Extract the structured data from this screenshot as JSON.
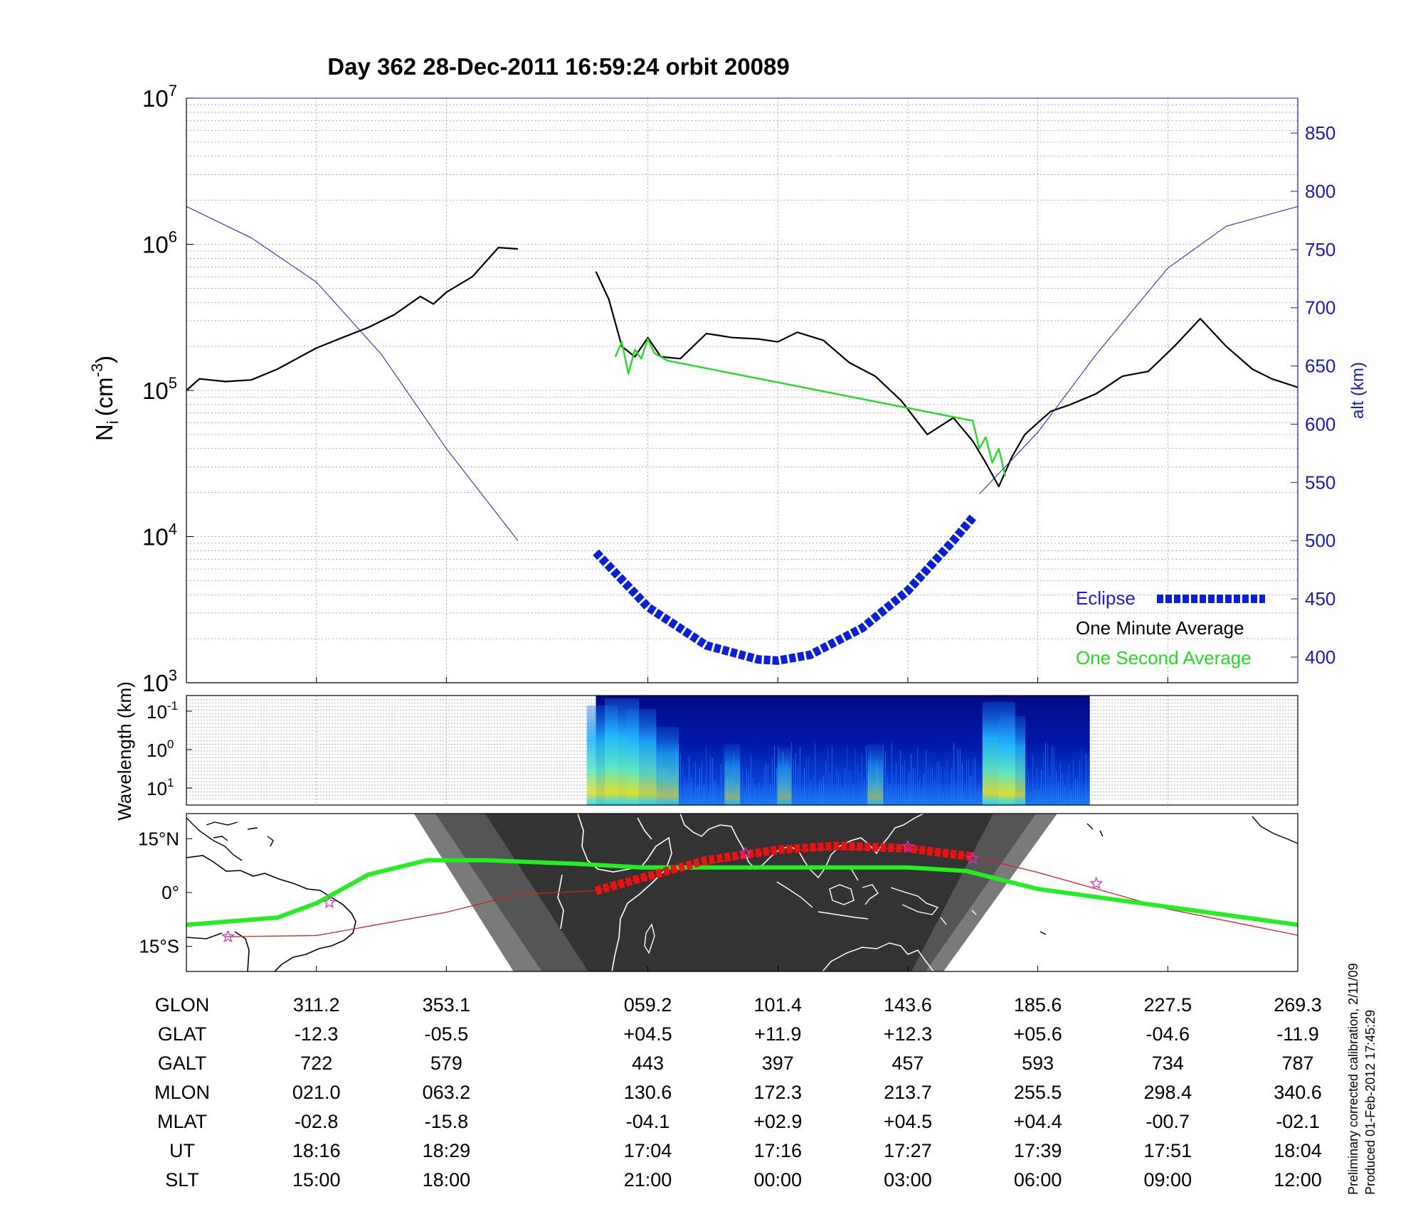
{
  "title": "Day 362  28-Dec-2011 16:59:24   orbit 20089",
  "chart_data": [
    {
      "type": "line",
      "ylabel_left": "N",
      "ylabel_left_sub": "i",
      "ylabel_left_unit": "(cm",
      "ylabel_left_sup": "-3",
      "ylabel_left_close": ")",
      "ylabel_right": "alt (km)",
      "yscale_left": "log",
      "ylim_left": [
        1000,
        10000000
      ],
      "left_ticks": [
        {
          "base": "10",
          "exp": "3",
          "value": 1000
        },
        {
          "base": "10",
          "exp": "4",
          "value": 10000
        },
        {
          "base": "10",
          "exp": "5",
          "value": 100000
        },
        {
          "base": "10",
          "exp": "6",
          "value": 1000000
        },
        {
          "base": "10",
          "exp": "7",
          "value": 10000000
        }
      ],
      "ylim_right": [
        378,
        880
      ],
      "right_ticks": [
        "400",
        "450",
        "500",
        "550",
        "600",
        "650",
        "700",
        "750",
        "800",
        "850"
      ],
      "x_tick_index": [
        1,
        2,
        3.55,
        4.55,
        5.55,
        6.55,
        7.55,
        8.55
      ],
      "xlim_index": [
        0,
        8.55
      ],
      "grid": true,
      "legend_position": "bottom-right",
      "legend": [
        {
          "label": "Eclipse",
          "color": "#0a1ee0",
          "marker": "dashed-thick"
        },
        {
          "label": "One Minute Average",
          "color": "#000000",
          "marker": "none"
        },
        {
          "label": "One Second Average",
          "color": "#22dd22",
          "marker": "none"
        }
      ],
      "series": [
        {
          "name": "One Minute Average",
          "color": "#000000",
          "x": [
            0,
            0.1,
            0.3,
            0.5,
            0.7,
            1.0,
            1.2,
            1.4,
            1.6,
            1.8,
            1.9,
            2.0,
            2.2,
            2.4,
            2.55
          ],
          "y": [
            100000,
            120000,
            115000,
            118000,
            140000,
            195000,
            230000,
            270000,
            330000,
            440000,
            390000,
            470000,
            600000,
            950000,
            930000
          ]
        },
        {
          "name": "One Minute Average",
          "color": "#000000",
          "x": [
            3.15,
            3.25,
            3.35,
            3.45,
            3.55,
            3.65,
            3.8,
            4.0,
            4.2,
            4.4,
            4.55,
            4.7,
            4.9,
            5.1,
            5.3,
            5.5,
            5.7,
            5.9,
            6.05,
            6.15,
            6.25,
            6.35,
            6.45,
            6.55,
            6.65,
            6.8,
            7.0,
            7.2,
            7.4,
            7.6,
            7.8,
            8.0,
            8.2,
            8.35,
            8.55
          ],
          "y": [
            650000,
            420000,
            200000,
            170000,
            230000,
            170000,
            165000,
            245000,
            230000,
            225000,
            215000,
            250000,
            220000,
            155000,
            125000,
            85000,
            50000,
            65000,
            45000,
            32000,
            22000,
            35000,
            50000,
            60000,
            72000,
            80000,
            95000,
            125000,
            135000,
            200000,
            310000,
            200000,
            140000,
            120000,
            105000
          ]
        },
        {
          "name": "One Second Average",
          "color": "#22dd22",
          "x": [
            3.3,
            3.35,
            3.4,
            3.45,
            3.5,
            3.55,
            3.6,
            3.7,
            6.05,
            6.1,
            6.15,
            6.2,
            6.25,
            6.3
          ],
          "y": [
            170000,
            215000,
            130000,
            190000,
            165000,
            225000,
            180000,
            160000,
            62000,
            40000,
            48000,
            32000,
            40000,
            26000
          ]
        },
        {
          "name": "alt (km)",
          "axis": "right",
          "color": "#1a1ab8",
          "x": [
            0,
            0.5,
            1.0,
            1.5,
            2.0,
            2.55
          ],
          "y": [
            787,
            760,
            722,
            660,
            579,
            500
          ]
        },
        {
          "name": "alt (km)",
          "axis": "right",
          "color": "#1a1ab8",
          "x": [
            6.1,
            6.55,
            7.0,
            7.55,
            8.0,
            8.55
          ],
          "y": [
            540,
            593,
            660,
            734,
            770,
            787
          ]
        },
        {
          "name": "Eclipse",
          "axis": "right",
          "color": "#0a1ee0",
          "style": "eclipse",
          "x": [
            3.15,
            3.55,
            4.0,
            4.4,
            4.55,
            4.8,
            5.2,
            5.55,
            5.9,
            6.05
          ],
          "y": [
            490,
            443,
            410,
            398,
            397,
            402,
            425,
            457,
            500,
            520
          ]
        }
      ]
    },
    {
      "type": "heatmap",
      "ylabel": "Wavelength (km)",
      "yscale": "log",
      "y_ticks": [
        {
          "base": "10",
          "exp": "-1"
        },
        {
          "base": "10",
          "exp": "0"
        },
        {
          "base": "10",
          "exp": "1"
        }
      ],
      "x_range_index": [
        3.15,
        6.95
      ],
      "colormap": "jet",
      "bursts": [
        {
          "x": 3.2,
          "intensity": 0.9
        },
        {
          "x": 3.35,
          "intensity": 1.0
        },
        {
          "x": 3.5,
          "intensity": 0.85
        },
        {
          "x": 3.7,
          "intensity": 0.6
        },
        {
          "x": 4.2,
          "intensity": 0.35
        },
        {
          "x": 4.6,
          "intensity": 0.3
        },
        {
          "x": 5.3,
          "intensity": 0.35
        },
        {
          "x": 6.25,
          "intensity": 0.95
        },
        {
          "x": 6.35,
          "intensity": 0.75
        }
      ]
    },
    {
      "type": "map",
      "y_ticks": [
        "15°N",
        "0°",
        "15°S"
      ],
      "lat_range": [
        -22,
        22
      ],
      "track": {
        "name": "magnetic equator",
        "color": "#22ee22",
        "x": [
          0,
          0.7,
          1.0,
          1.4,
          1.85,
          2.3,
          3.0,
          3.5,
          4.55,
          5.55,
          6.0,
          6.55,
          7.55,
          8.55
        ],
        "lat": [
          -9,
          -7,
          -3,
          5,
          9,
          9,
          8,
          7,
          7,
          7,
          6,
          1,
          -4,
          -9
        ]
      },
      "orbit": {
        "color": "#cc2222",
        "x": [
          0.3,
          1.0,
          2.0,
          2.55,
          3.15,
          3.55,
          4.55,
          5.55,
          6.05,
          6.55,
          7.55,
          8.55
        ],
        "lat": [
          -12.3,
          -12,
          -5.5,
          -0.5,
          0.5,
          4.5,
          11.9,
          12.3,
          10,
          5.6,
          -4.6,
          -11.9
        ]
      },
      "eclipse_track": {
        "color": "#ee1111",
        "x": [
          3.15,
          3.55,
          4.0,
          4.55,
          5.0,
          5.55,
          6.05
        ],
        "lat": [
          0.5,
          4.5,
          9,
          11.9,
          13,
          12.3,
          10
        ]
      },
      "stars": [
        {
          "x": 0.32,
          "lat": -12.3
        },
        {
          "x": 1.1,
          "lat": -2.8
        },
        {
          "x": 4.3,
          "lat": 11
        },
        {
          "x": 5.55,
          "lat": 12.8
        },
        {
          "x": 6.05,
          "lat": 9.5
        },
        {
          "x": 7.0,
          "lat": 2.5
        }
      ],
      "night_region": {
        "x_start": 1.75,
        "x_end": 6.7
      }
    }
  ],
  "table": {
    "row_labels": [
      "GLON",
      "GLAT",
      "GALT",
      "MLON",
      "MLAT",
      "UT",
      "SLT"
    ],
    "columns": [
      [
        "311.2",
        "-12.3",
        "722",
        "021.0",
        "-02.8",
        "18:16",
        "15:00"
      ],
      [
        "353.1",
        "-05.5",
        "579",
        "063.2",
        "-15.8",
        "18:29",
        "18:00"
      ],
      [
        "059.2",
        "+04.5",
        "443",
        "130.6",
        "-04.1",
        "17:04",
        "21:00"
      ],
      [
        "101.4",
        "+11.9",
        "397",
        "172.3",
        "+02.9",
        "17:16",
        "00:00"
      ],
      [
        "143.6",
        "+12.3",
        "457",
        "213.7",
        "+04.5",
        "17:27",
        "03:00"
      ],
      [
        "185.6",
        "+05.6",
        "593",
        "255.5",
        "+04.4",
        "17:39",
        "06:00"
      ],
      [
        "227.5",
        "-04.6",
        "734",
        "298.4",
        "-00.7",
        "17:51",
        "09:00"
      ],
      [
        "269.3",
        "-11.9",
        "787",
        "340.6",
        "-02.1",
        "18:04",
        "12:00"
      ]
    ]
  },
  "footer": {
    "line1": "Preliminary corrected calibration, 2/11/09",
    "line2": "Produced 01-Feb-2012 17:45:29"
  }
}
